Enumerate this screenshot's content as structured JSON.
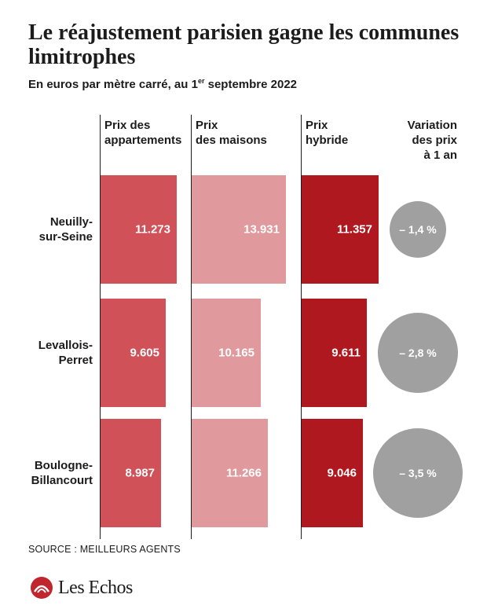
{
  "title": "Le réajustement parisien gagne les communes limitrophes",
  "subtitle_main": "En euros par mètre carré, au 1",
  "subtitle_sup": "er",
  "subtitle_end": " septembre 2022",
  "source": "SOURCE : MEILLEURS AGENTS",
  "logo_text": "Les Echos",
  "colors": {
    "appartements": "#d05158",
    "maisons": "#e09a9d",
    "hybride": "#b0181f",
    "variation": "#a0a0a0"
  },
  "chart_data": {
    "type": "bar",
    "categories": [
      "Neuilly-sur-Seine",
      "Levallois-Perret",
      "Boulogne-Billancourt"
    ],
    "category_labels": [
      [
        "Neuilly-",
        "sur-Seine"
      ],
      [
        "Levallois-",
        "Perret"
      ],
      [
        "Boulogne-",
        "Billancourt"
      ]
    ],
    "series": [
      {
        "key": "appartements",
        "name": "Prix des appartements",
        "header": [
          "Prix des",
          "appartements"
        ],
        "values": [
          11273,
          9605,
          8987
        ],
        "labels": [
          "11.273",
          "9.605",
          "8.987"
        ]
      },
      {
        "key": "maisons",
        "name": "Prix des maisons",
        "header": [
          "Prix",
          "des maisons"
        ],
        "values": [
          13931,
          10165,
          11266
        ],
        "labels": [
          "13.931",
          "10.165",
          "11.266"
        ]
      },
      {
        "key": "hybride",
        "name": "Prix hybride",
        "header": [
          "Prix",
          "hybride"
        ],
        "values": [
          11357,
          9611,
          9046
        ],
        "labels": [
          "11.357",
          "9.611",
          "9.046"
        ]
      }
    ],
    "variation": {
      "header": [
        "Variation",
        "des prix",
        "à 1 an"
      ],
      "values": [
        -1.4,
        -2.8,
        -3.5
      ],
      "labels": [
        "– 1,4 %",
        "– 2,8 %",
        "– 3,5 %"
      ]
    }
  }
}
